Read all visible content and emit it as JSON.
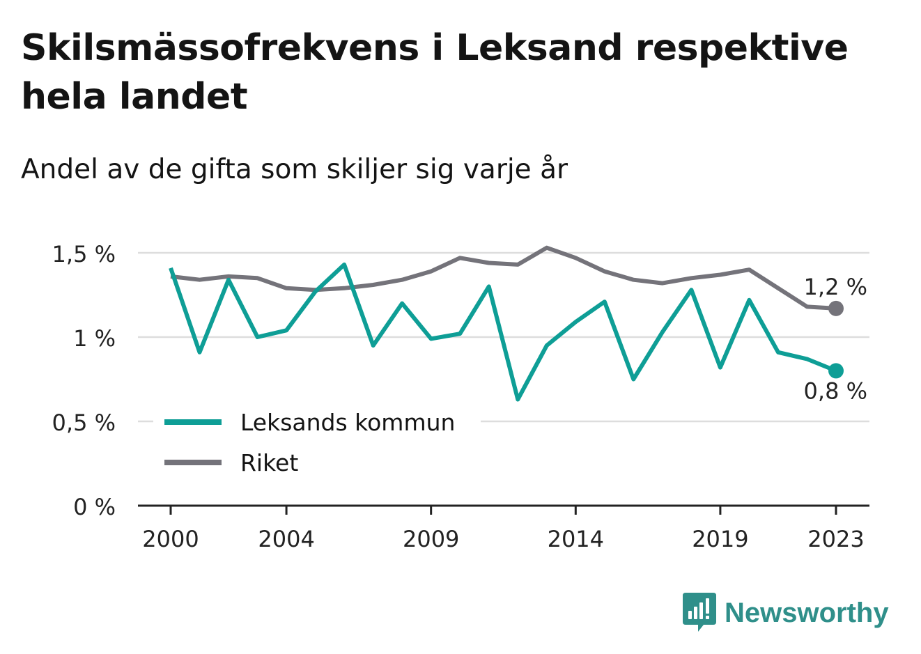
{
  "title": "Skilsmässofrekvens i Leksand respektive hela landet",
  "subtitle": "Andel av de gifta som skiljer sig varje år",
  "brand": {
    "name": "Newsworthy",
    "icon": "newsworthy-logo-icon",
    "color": "#2f8f8a"
  },
  "colors": {
    "leksand": "#0e9e96",
    "riket": "#74737a",
    "grid": "#dddddd",
    "axis": "#222222"
  },
  "chart_data": {
    "type": "line",
    "title": "Skilsmässofrekvens i Leksand respektive hela landet",
    "subtitle": "Andel av de gifta som skiljer sig varje år",
    "xlabel": "",
    "ylabel": "",
    "x": [
      2000,
      2001,
      2002,
      2003,
      2004,
      2005,
      2006,
      2007,
      2008,
      2009,
      2010,
      2011,
      2012,
      2013,
      2014,
      2015,
      2016,
      2017,
      2018,
      2019,
      2020,
      2021,
      2022,
      2023
    ],
    "x_tick_labels": [
      "2000",
      "2004",
      "2009",
      "2014",
      "2019",
      "2023"
    ],
    "y_tick_labels": [
      "0 %",
      "0,5 %",
      "1 %",
      "1,5 %"
    ],
    "y_ticks": [
      0,
      0.5,
      1,
      1.5
    ],
    "ylim": [
      0,
      1.5
    ],
    "grid": true,
    "legend_placement": "bottom-left",
    "series": [
      {
        "name": "Leksands kommun",
        "color": "#0e9e96",
        "values": [
          1.41,
          0.91,
          1.34,
          1.0,
          1.04,
          1.27,
          1.43,
          0.95,
          1.2,
          0.99,
          1.02,
          1.3,
          0.63,
          0.95,
          1.09,
          1.21,
          0.75,
          1.03,
          1.28,
          0.82,
          1.22,
          0.91,
          0.87,
          0.8
        ],
        "end_label": "0,8 %"
      },
      {
        "name": "Riket",
        "color": "#74737a",
        "values": [
          1.36,
          1.34,
          1.36,
          1.35,
          1.29,
          1.28,
          1.29,
          1.31,
          1.34,
          1.39,
          1.47,
          1.44,
          1.43,
          1.53,
          1.47,
          1.39,
          1.34,
          1.32,
          1.35,
          1.37,
          1.4,
          1.29,
          1.18,
          1.17
        ],
        "end_label": "1,2 %"
      }
    ]
  }
}
